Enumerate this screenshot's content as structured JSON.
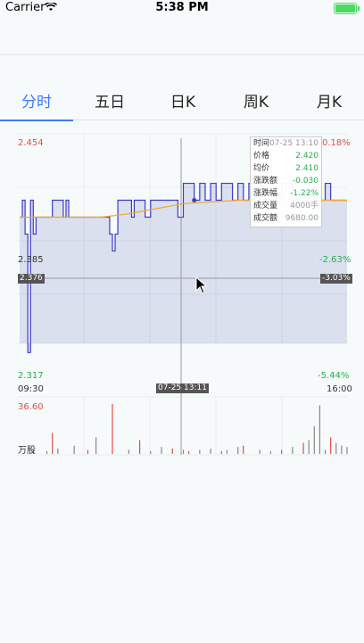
{
  "status_bar": {
    "carrier": "Carrier",
    "time": "5:38 PM"
  },
  "tabs": [
    {
      "label": "分时",
      "active": true
    },
    {
      "label": "五日",
      "active": false
    },
    {
      "label": "日K",
      "active": false
    },
    {
      "label": "周K",
      "active": false
    },
    {
      "label": "月K",
      "active": false
    }
  ],
  "chart": {
    "price_top": "2.454",
    "pct_top": "0.18%",
    "price_mid": "2.385",
    "pct_mid": "-2.63%",
    "price_cursor": "2.376",
    "pct_cursor": "-3.03%",
    "price_bottom": "2.317",
    "pct_bottom": "-5.44%",
    "time_start": "09:30",
    "time_cursor": "07-25 13:11",
    "time_end": "16:00",
    "volume_max": "36.60",
    "volume_unit": "万股"
  },
  "tooltip": {
    "time_label": "时间",
    "time_value": "07-25 13:10",
    "price_label": "价格",
    "price_value": "2.420",
    "avg_label": "均价",
    "avg_value": "2.410",
    "change_label": "涨跌额",
    "change_value": "-0.030",
    "change_pct_label": "涨跌幅",
    "change_pct_value": "-1.22%",
    "volume_label": "成交量",
    "volume_value": "4000手",
    "amount_label": "成交额",
    "amount_value": "9680.00"
  },
  "colors": {
    "accent": "#3b7cf4",
    "price_line": "#3a3dc8",
    "avg_line": "#f4a52a",
    "up": "#e84d3d",
    "down": "#23b04e"
  },
  "chart_data": {
    "type": "line",
    "price_range": [
      2.317,
      2.454
    ],
    "price_series": [
      [
        0,
        2.41
      ],
      [
        1,
        2.42
      ],
      [
        2,
        2.4
      ],
      [
        3,
        2.33
      ],
      [
        4,
        2.42
      ],
      [
        5,
        2.4
      ],
      [
        6,
        2.41
      ],
      [
        10,
        2.41
      ],
      [
        12,
        2.42
      ],
      [
        15,
        2.42
      ],
      [
        16,
        2.41
      ],
      [
        17,
        2.42
      ],
      [
        18,
        2.41
      ],
      [
        25,
        2.41
      ],
      [
        30,
        2.41
      ],
      [
        32,
        2.41
      ],
      [
        33,
        2.4
      ],
      [
        34,
        2.39
      ],
      [
        35,
        2.4
      ],
      [
        36,
        2.42
      ],
      [
        40,
        2.42
      ],
      [
        41,
        2.41
      ],
      [
        42,
        2.42
      ],
      [
        45,
        2.42
      ],
      [
        46,
        2.41
      ],
      [
        48,
        2.42
      ],
      [
        52,
        2.42
      ],
      [
        56,
        2.42
      ],
      [
        58,
        2.41
      ],
      [
        60,
        2.43
      ],
      [
        62,
        2.43
      ],
      [
        64,
        2.42
      ],
      [
        66,
        2.43
      ],
      [
        68,
        2.42
      ],
      [
        70,
        2.43
      ],
      [
        72,
        2.42
      ],
      [
        74,
        2.43
      ],
      [
        76,
        2.43
      ],
      [
        78,
        2.42
      ],
      [
        80,
        2.43
      ],
      [
        82,
        2.42
      ],
      [
        84,
        2.43
      ],
      [
        86,
        2.43
      ],
      [
        88,
        2.42
      ],
      [
        90,
        2.43
      ],
      [
        92,
        2.43
      ],
      [
        94,
        2.42
      ],
      [
        96,
        2.43
      ],
      [
        98,
        2.43
      ],
      [
        100,
        2.42
      ],
      [
        104,
        2.42
      ],
      [
        106,
        2.43
      ],
      [
        108,
        2.42
      ],
      [
        110,
        2.42
      ],
      [
        112,
        2.43
      ],
      [
        114,
        2.42
      ],
      [
        120,
        2.42
      ]
    ],
    "avg_series": [
      [
        0,
        2.41
      ],
      [
        20,
        2.41
      ],
      [
        30,
        2.41
      ],
      [
        40,
        2.412
      ],
      [
        50,
        2.415
      ],
      [
        60,
        2.418
      ],
      [
        70,
        2.419
      ],
      [
        80,
        2.42
      ],
      [
        90,
        2.42
      ],
      [
        100,
        2.421
      ],
      [
        110,
        2.42
      ],
      [
        120,
        2.42
      ]
    ],
    "volume_bars": [
      [
        5,
        3,
        "down"
      ],
      [
        10,
        2,
        "down"
      ],
      [
        12,
        15,
        "up"
      ],
      [
        14,
        4,
        "down"
      ],
      [
        20,
        6,
        "down"
      ],
      [
        25,
        3,
        "up"
      ],
      [
        28,
        12,
        "down"
      ],
      [
        34,
        36,
        "up"
      ],
      [
        40,
        3,
        "down"
      ],
      [
        44,
        10,
        "up"
      ],
      [
        48,
        2,
        "down"
      ],
      [
        52,
        5,
        "down"
      ],
      [
        56,
        4,
        "up"
      ],
      [
        60,
        3,
        "down"
      ],
      [
        62,
        2,
        "up"
      ],
      [
        66,
        3,
        "down"
      ],
      [
        70,
        4,
        "down"
      ],
      [
        74,
        2,
        "up"
      ],
      [
        76,
        3,
        "down"
      ],
      [
        80,
        5,
        "down"
      ],
      [
        82,
        6,
        "up"
      ],
      [
        88,
        3,
        "down"
      ],
      [
        92,
        2,
        "down"
      ],
      [
        96,
        3,
        "up"
      ],
      [
        100,
        5,
        "down"
      ],
      [
        104,
        8,
        "up"
      ],
      [
        106,
        10,
        "down"
      ],
      [
        108,
        20,
        "down"
      ],
      [
        110,
        35,
        "down"
      ],
      [
        112,
        3,
        "down"
      ],
      [
        114,
        12,
        "up"
      ],
      [
        116,
        8,
        "down"
      ],
      [
        118,
        6,
        "down"
      ],
      [
        120,
        5,
        "down"
      ]
    ],
    "cursor_time": 64
  }
}
